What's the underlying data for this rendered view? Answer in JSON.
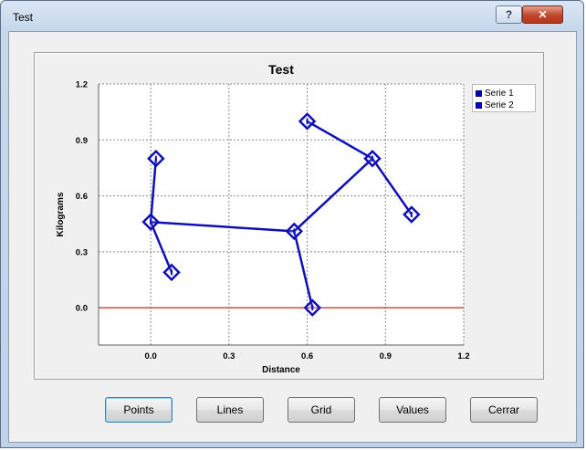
{
  "window": {
    "title": "Test",
    "help_glyph": "?",
    "close_glyph": "✕"
  },
  "chart_data": {
    "type": "scatter",
    "title": "Test",
    "xlabel": "Distance",
    "ylabel": "Kilograms",
    "xlim": [
      -0.2,
      1.2
    ],
    "ylim": [
      -0.2,
      1.2
    ],
    "x_ticks": [
      "0.0",
      "0.3",
      "0.6",
      "0.9",
      "1.2"
    ],
    "y_ticks": [
      "0.0",
      "0.3",
      "0.6",
      "0.9",
      "1.2"
    ],
    "grid": true,
    "zero_line_color": "#cc2a1f",
    "series_color": "#1010b8",
    "legend_position": "top-right",
    "series": [
      {
        "name": "Serie 1",
        "points": [
          {
            "x": 0.02,
            "y": 0.8
          },
          {
            "x": 0.0,
            "y": 0.46
          },
          {
            "x": 0.08,
            "y": 0.19
          },
          {
            "x": 0.0,
            "y": 0.46
          },
          {
            "x": 0.55,
            "y": 0.41
          },
          {
            "x": 0.62,
            "y": 0.0
          },
          {
            "x": 0.55,
            "y": 0.41
          },
          {
            "x": 0.85,
            "y": 0.8
          },
          {
            "x": 0.6,
            "y": 1.0
          },
          {
            "x": 0.85,
            "y": 0.8
          },
          {
            "x": 1.0,
            "y": 0.5
          }
        ]
      },
      {
        "name": "Serie 2",
        "points": []
      }
    ]
  },
  "buttons": {
    "points": "Points",
    "lines": "Lines",
    "grid": "Grid",
    "values": "Values",
    "close": "Cerrar"
  }
}
